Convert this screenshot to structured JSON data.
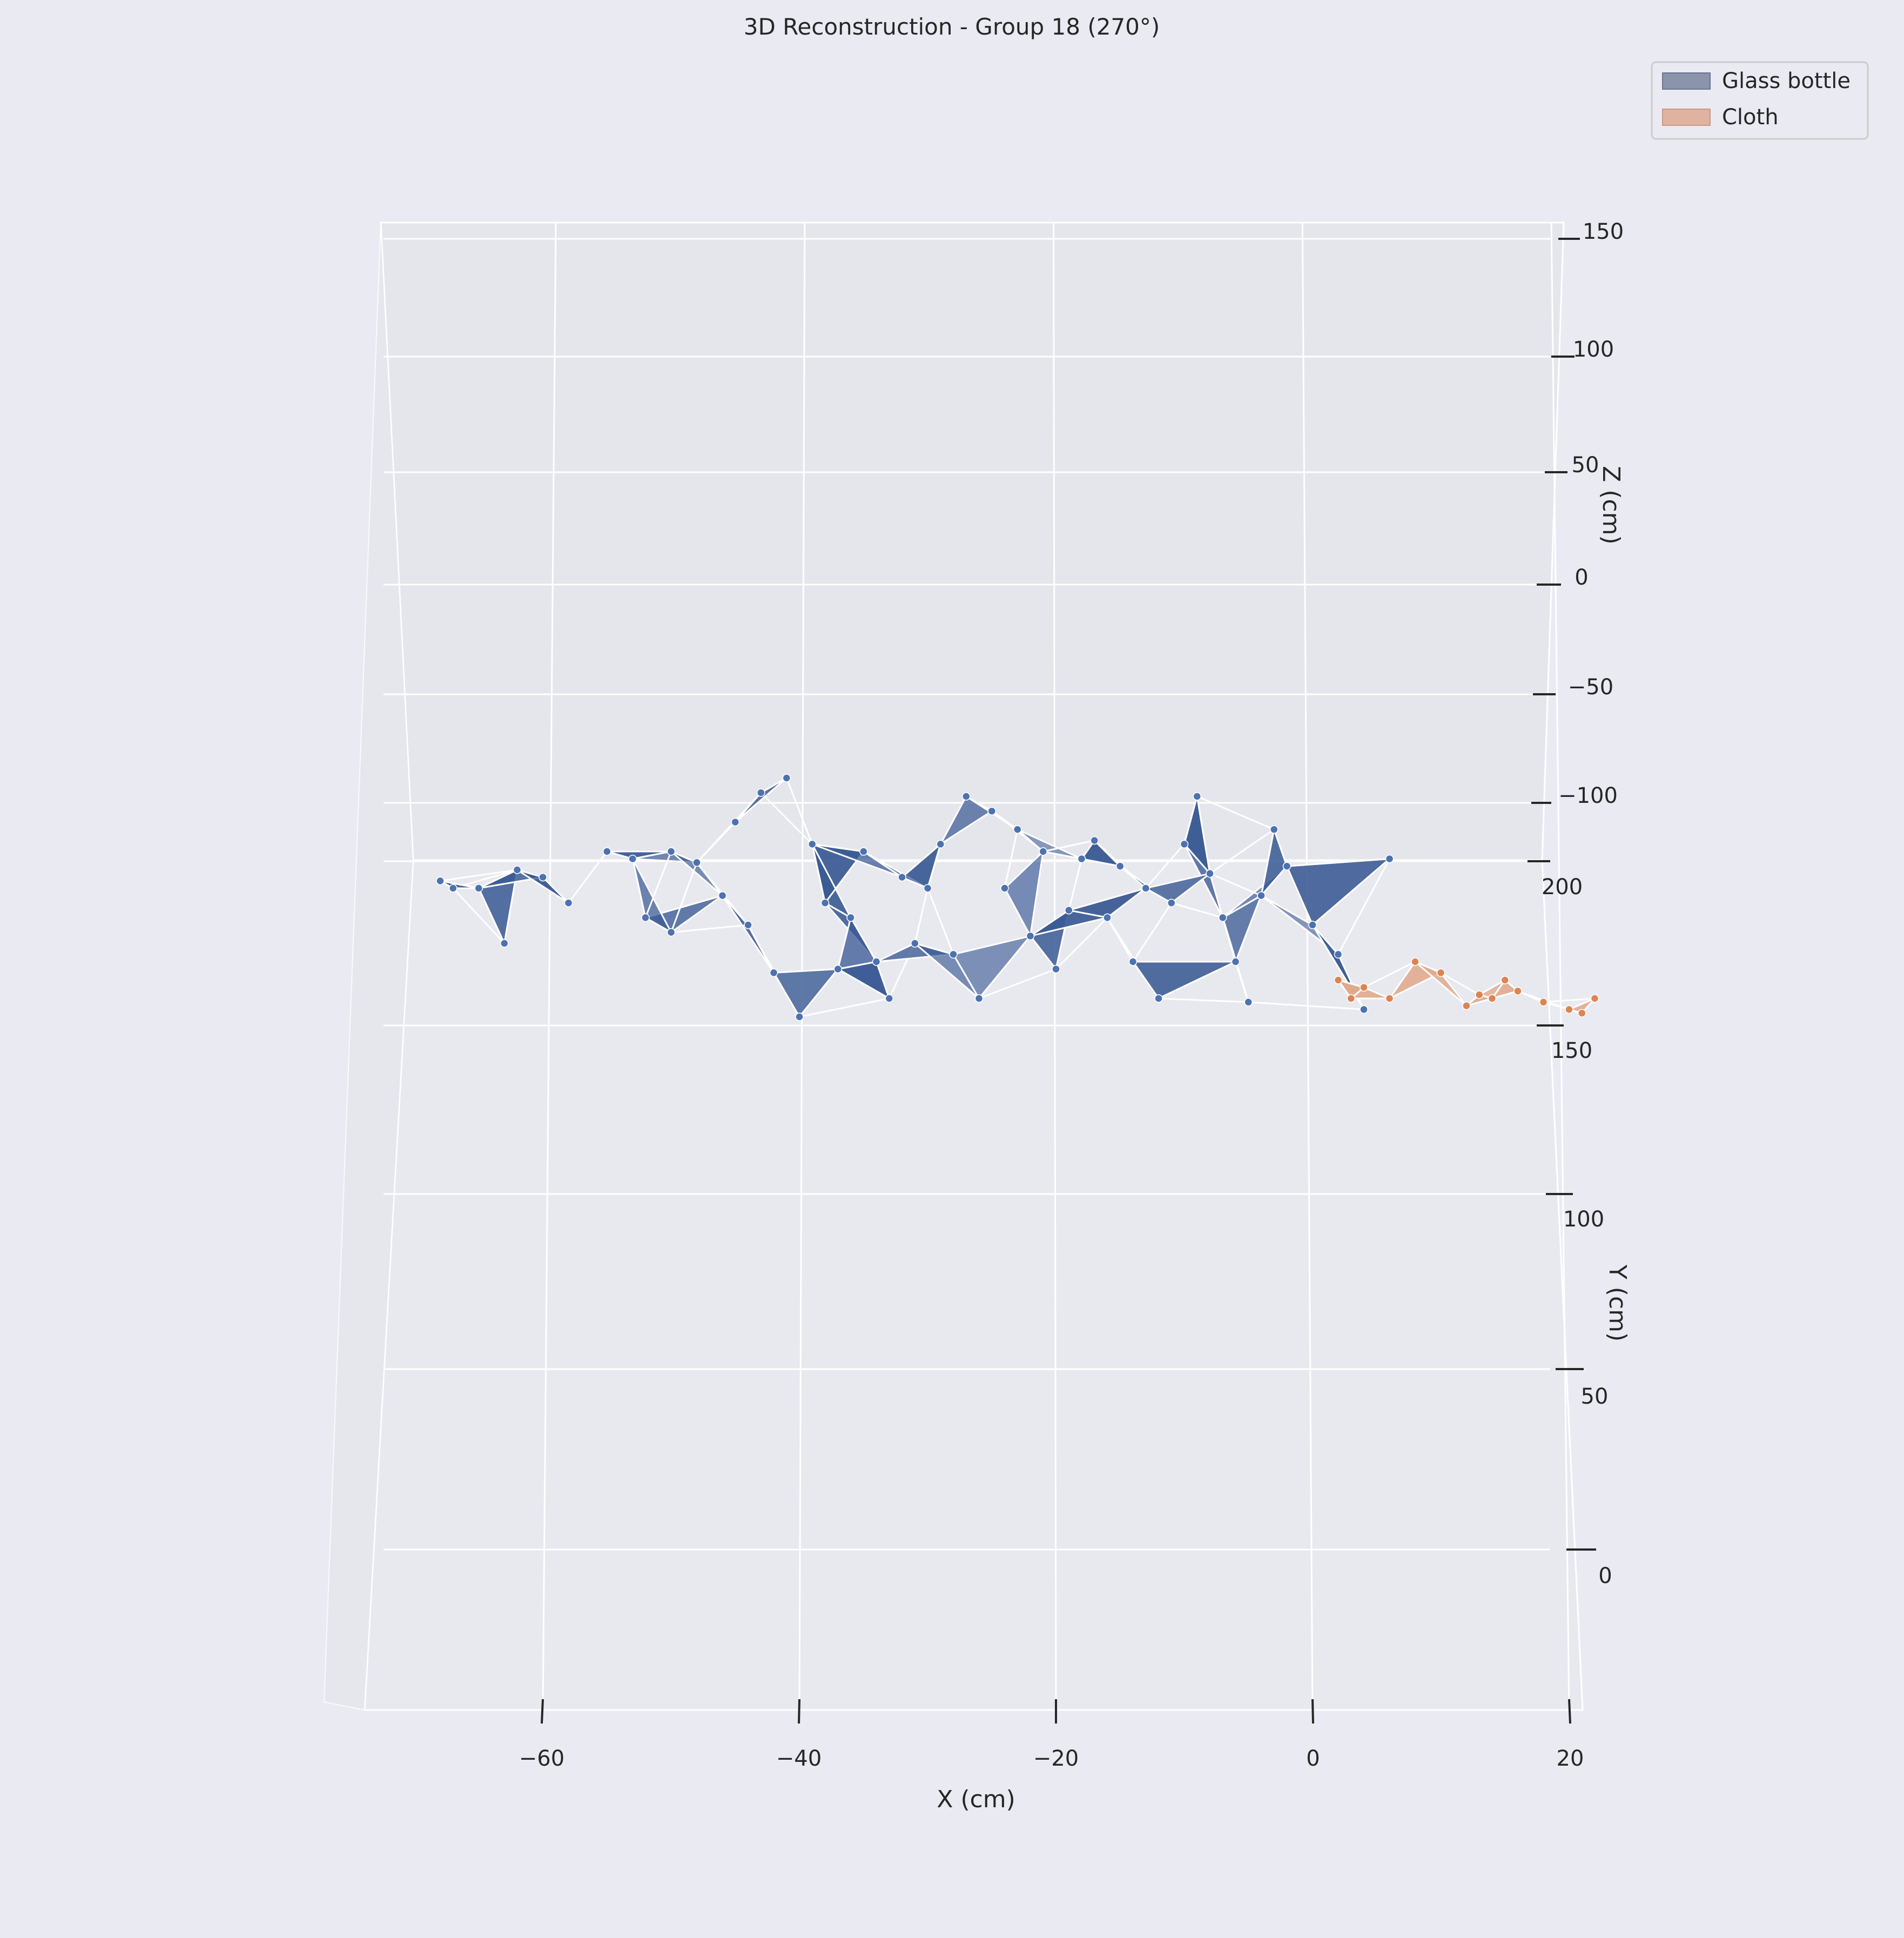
{
  "chart_data": {
    "type": "scatter",
    "title": "3D Reconstruction - Group 18 (270°)",
    "xlabel": "X (cm)",
    "ylabel": "Y (cm)",
    "zlabel": "Z (cm)",
    "x_ticks": [
      "−60",
      "−40",
      "−20",
      "0",
      "20"
    ],
    "y_ticks": [
      "0",
      "50",
      "100",
      "150",
      "200"
    ],
    "z_ticks": [
      "−100",
      "−50",
      "0",
      "50",
      "100",
      "150"
    ],
    "grid": true,
    "legend_position": "top-right",
    "series": [
      {
        "name": "Glass bottle",
        "color": "#4c72b0",
        "surface_color": "#3a5a94",
        "points": [
          [
            -68,
            182
          ],
          [
            -67,
            180
          ],
          [
            -65,
            180
          ],
          [
            -63,
            165
          ],
          [
            -62,
            185
          ],
          [
            -60,
            183
          ],
          [
            -58,
            176
          ],
          [
            -55,
            190
          ],
          [
            -53,
            188
          ],
          [
            -50,
            190
          ],
          [
            -48,
            187
          ],
          [
            -45,
            198
          ],
          [
            -43,
            206
          ],
          [
            -41,
            210
          ],
          [
            -39,
            192
          ],
          [
            -38,
            176
          ],
          [
            -36,
            172
          ],
          [
            -34,
            160
          ],
          [
            -33,
            150
          ],
          [
            -31,
            165
          ],
          [
            -29,
            192
          ],
          [
            -27,
            205
          ],
          [
            -25,
            201
          ],
          [
            -24,
            180
          ],
          [
            -22,
            167
          ],
          [
            -20,
            158
          ],
          [
            -18,
            188
          ],
          [
            -16,
            172
          ],
          [
            -14,
            160
          ],
          [
            -12,
            150
          ],
          [
            -10,
            192
          ],
          [
            -9,
            205
          ],
          [
            -8,
            184
          ],
          [
            -7,
            172
          ],
          [
            -6,
            160
          ],
          [
            -5,
            149
          ],
          [
            -4,
            178
          ],
          [
            -3,
            196
          ],
          [
            -2,
            186
          ],
          [
            0,
            170
          ],
          [
            2,
            162
          ],
          [
            4,
            147
          ],
          [
            6,
            188
          ],
          [
            -44,
            170
          ],
          [
            -42,
            157
          ],
          [
            -40,
            145
          ],
          [
            -37,
            158
          ],
          [
            -35,
            190
          ],
          [
            -32,
            183
          ],
          [
            -30,
            180
          ],
          [
            -28,
            162
          ],
          [
            -26,
            150
          ],
          [
            -23,
            196
          ],
          [
            -21,
            190
          ],
          [
            -19,
            174
          ],
          [
            -17,
            193
          ],
          [
            -15,
            186
          ],
          [
            -13,
            180
          ],
          [
            -11,
            176
          ],
          [
            -50,
            168
          ],
          [
            -46,
            178
          ],
          [
            -52,
            172
          ]
        ]
      },
      {
        "name": "Cloth",
        "color": "#dd8452",
        "surface_color": "#e0a98a",
        "points": [
          [
            2,
            155
          ],
          [
            4,
            153
          ],
          [
            6,
            150
          ],
          [
            8,
            160
          ],
          [
            10,
            157
          ],
          [
            12,
            148
          ],
          [
            14,
            150
          ],
          [
            16,
            152
          ],
          [
            18,
            149
          ],
          [
            20,
            147
          ],
          [
            22,
            150
          ],
          [
            21,
            146
          ],
          [
            13,
            151
          ],
          [
            15,
            155
          ],
          [
            3,
            150
          ]
        ]
      }
    ]
  }
}
